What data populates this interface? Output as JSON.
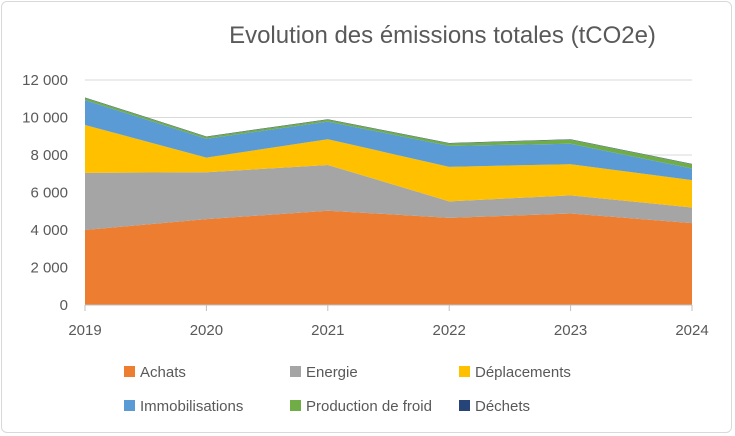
{
  "chart_data": {
    "type": "area",
    "stacked": true,
    "title": "Evolution des émissions totales (tCO2e)",
    "xlabel": "",
    "ylabel": "",
    "x": [
      "2019",
      "2020",
      "2021",
      "2022",
      "2023",
      "2024"
    ],
    "ylim": [
      0,
      12000
    ],
    "yticks": [
      0,
      2000,
      4000,
      6000,
      8000,
      10000,
      12000
    ],
    "ytick_labels": [
      "0",
      "2 000",
      "4 000",
      "6 000",
      "8 000",
      "10 000",
      "12 000"
    ],
    "grid": true,
    "legend_position": "bottom",
    "series": [
      {
        "name": "Achats",
        "color": "#ED7D31",
        "values": [
          4000,
          4580,
          5030,
          4650,
          4880,
          4370
        ]
      },
      {
        "name": "Energie",
        "color": "#A5A5A5",
        "values": [
          3050,
          2500,
          2440,
          880,
          970,
          830
        ]
      },
      {
        "name": "Déplacements",
        "color": "#FFC000",
        "values": [
          2550,
          780,
          1370,
          1840,
          1660,
          1460
        ]
      },
      {
        "name": "Immobilisations",
        "color": "#5B9BD5",
        "values": [
          1330,
          1010,
          940,
          1120,
          1090,
          620
        ]
      },
      {
        "name": "Production de froid",
        "color": "#70AD47",
        "values": [
          120,
          100,
          110,
          130,
          220,
          230
        ]
      },
      {
        "name": "Déchets",
        "color": "#264478",
        "values": [
          20,
          20,
          20,
          20,
          20,
          20
        ]
      }
    ]
  }
}
